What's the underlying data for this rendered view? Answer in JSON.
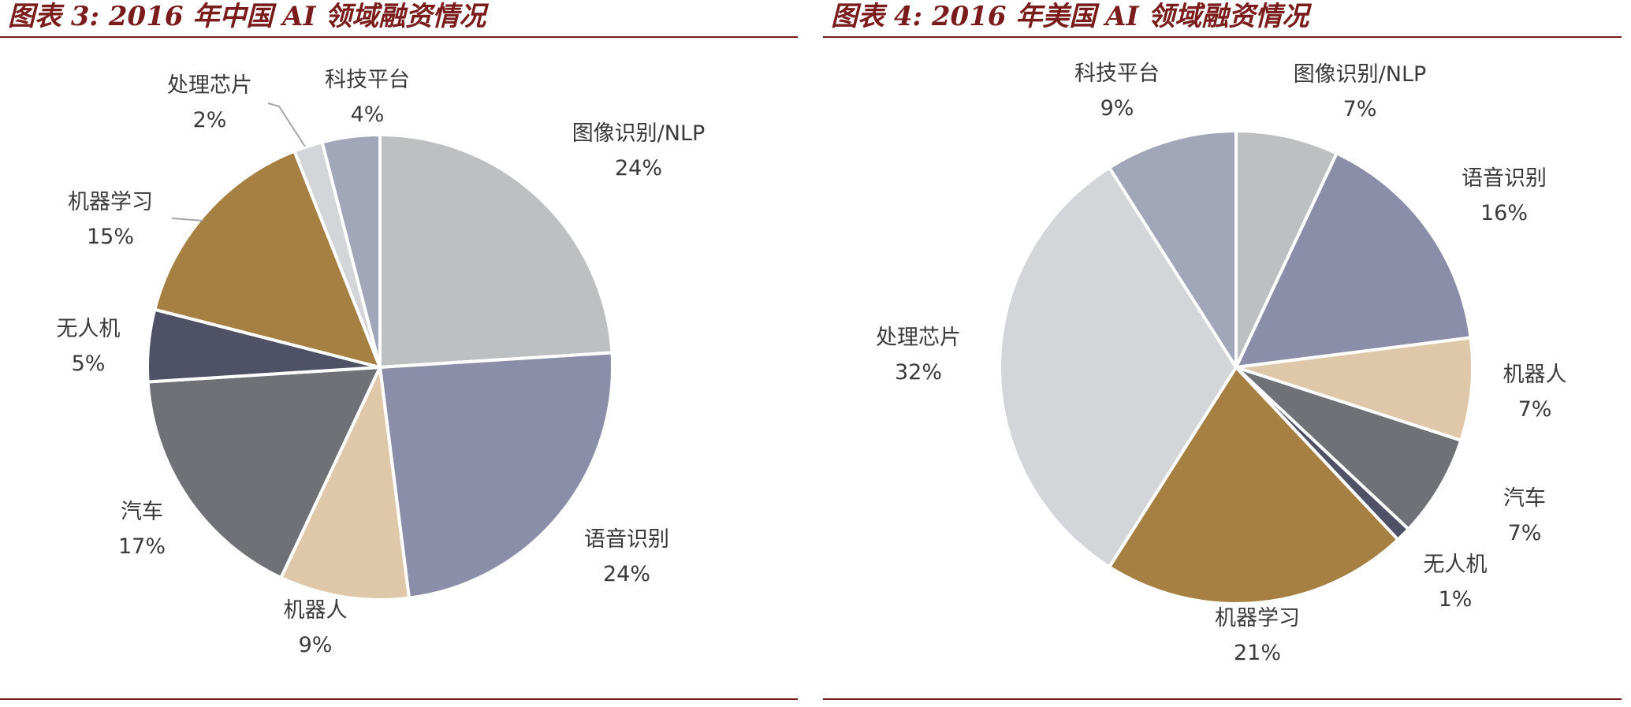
{
  "chart_data": [
    {
      "type": "pie",
      "title": "图表 3: 2016 年中国 AI 领域融资情况",
      "slices": [
        {
          "name": "图像识别/NLP",
          "value": 24,
          "label": "24%",
          "color": "#bebfc1"
        },
        {
          "name": "语音识别",
          "value": 24,
          "label": "24%",
          "color": "#8a8ea8"
        },
        {
          "name": "机器人",
          "value": 9,
          "label": "9%",
          "color": "#dfc8aa"
        },
        {
          "name": "汽车",
          "value": 17,
          "label": "17%",
          "color": "#6f7176"
        },
        {
          "name": "无人机",
          "value": 5,
          "label": "5%",
          "color": "#4f5266"
        },
        {
          "name": "机器学习",
          "value": 15,
          "label": "15%",
          "color": "#a67f42"
        },
        {
          "name": "处理芯片",
          "value": 2,
          "label": "2%",
          "color": "#d4d5d8"
        },
        {
          "name": "科技平台",
          "value": 4,
          "label": "4%",
          "color": "#a1a6b9"
        }
      ],
      "start": "12 o'clock",
      "direction": "clockwise",
      "legend": "none (data labels)"
    },
    {
      "type": "pie",
      "title": "图表 4: 2016 年美国 AI 领域融资情况",
      "slices": [
        {
          "name": "图像识别/NLP",
          "value": 7,
          "label": "7%",
          "color": "#bebfc1"
        },
        {
          "name": "语音识别",
          "value": 16,
          "label": "16%",
          "color": "#8a8ea8"
        },
        {
          "name": "机器人",
          "value": 7,
          "label": "7%",
          "color": "#dfc8aa"
        },
        {
          "name": "汽车",
          "value": 7,
          "label": "7%",
          "color": "#6f7176"
        },
        {
          "name": "无人机",
          "value": 1,
          "label": "1%",
          "color": "#4f5266"
        },
        {
          "name": "机器学习",
          "value": 21,
          "label": "21%",
          "color": "#a67f42"
        },
        {
          "name": "处理芯片",
          "value": 32,
          "label": "32%",
          "color": "#d4d5d8"
        },
        {
          "name": "科技平台",
          "value": 9,
          "label": "9%",
          "color": "#a1a6b9"
        }
      ],
      "start": "12 o'clock",
      "direction": "clockwise",
      "legend": "none (data labels)"
    }
  ],
  "colors": {
    "title": "#7b1c1c",
    "rule": "#7b1c1c",
    "label": "#3a3a3a",
    "separator": "#ffffff"
  }
}
